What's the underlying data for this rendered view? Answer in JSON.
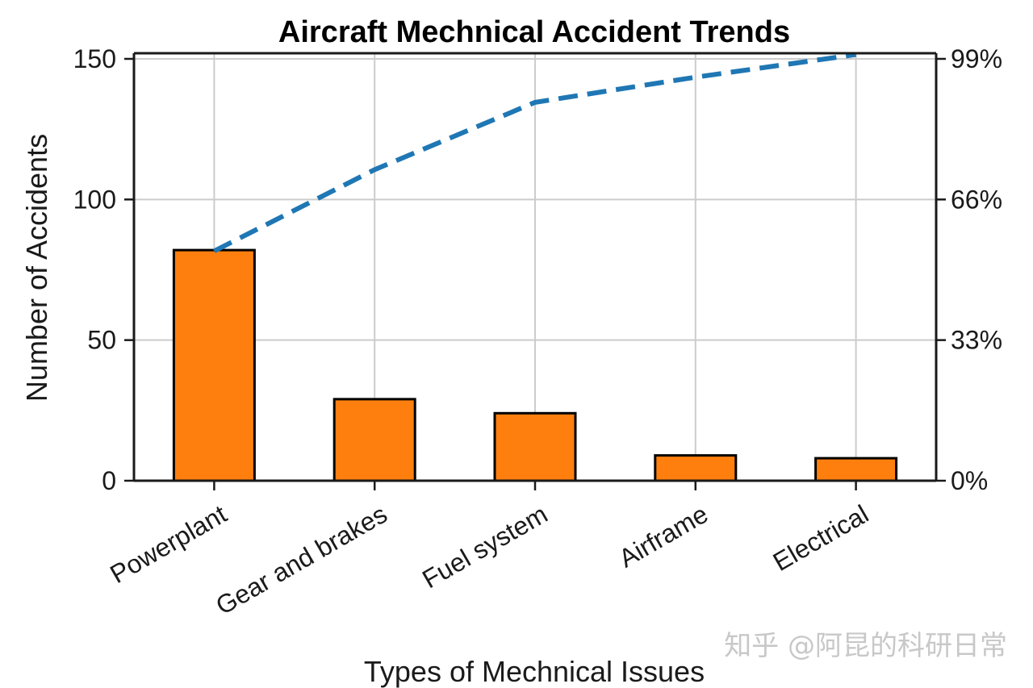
{
  "chart_data": {
    "type": "bar",
    "title": "Aircraft Mechnical Accident Trends",
    "xlabel": "Types of Mechnical Issues",
    "ylabel": "Number of Accidents",
    "categories": [
      "Powerplant",
      "Gear and brakes",
      "Fuel system",
      "Airframe",
      "Electrical"
    ],
    "values": [
      82,
      29,
      24,
      9,
      8
    ],
    "ylim": [
      0,
      152
    ],
    "yticks": [
      0,
      50,
      100,
      150
    ],
    "y2ticks": [
      "0%",
      "33%",
      "66%",
      "99%"
    ],
    "cumulative_percent": [
      53.9,
      73.0,
      88.8,
      94.7,
      100.0
    ],
    "grid": true,
    "colors": {
      "bar": "#ff7f0e",
      "bar_edge": "#000000",
      "line": "#1f77b4",
      "grid": "#cccccc"
    }
  },
  "watermark": "知乎 @阿昆的科研日常"
}
